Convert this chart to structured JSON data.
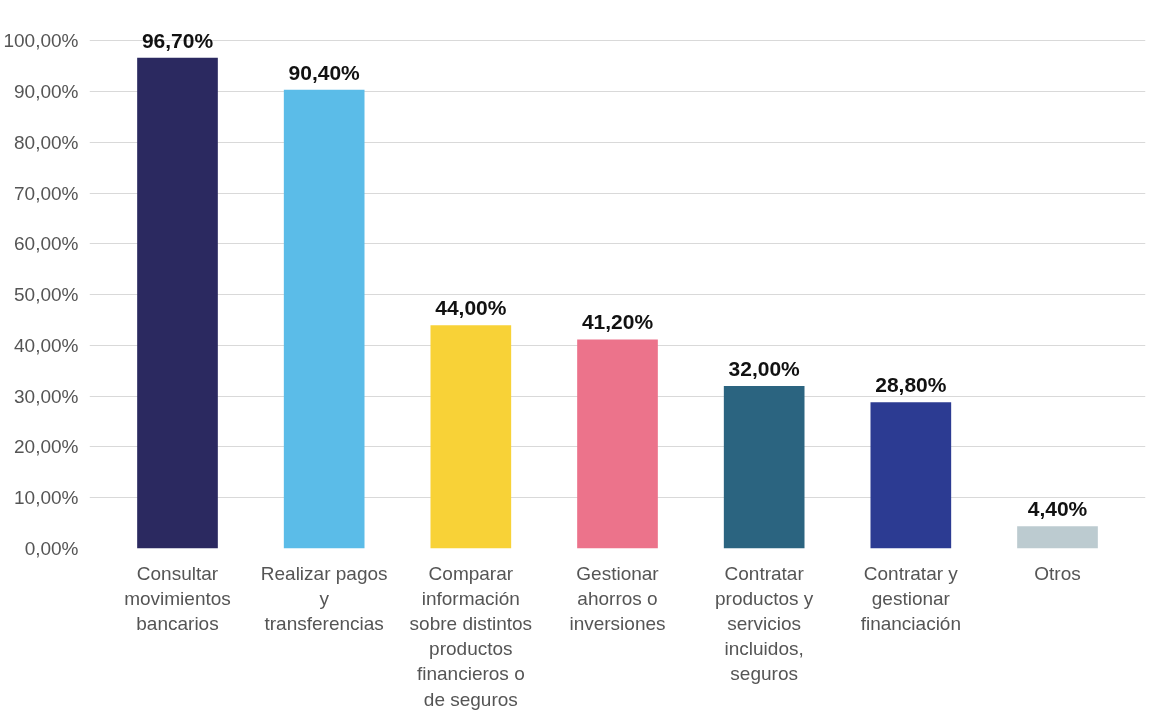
{
  "chart_data": {
    "type": "bar",
    "categories": [
      "Consultar movimientos bancarios",
      "Realizar pagos y transferencias",
      "Comparar información sobre distintos productos financieros o de seguros",
      "Gestionar ahorros o inversiones",
      "Contratar productos y servicios incluidos, seguros",
      "Contratar y gestionar financiación",
      "Otros"
    ],
    "values": [
      96.7,
      90.4,
      44.0,
      41.2,
      32.0,
      28.8,
      4.4
    ],
    "colors": [
      "#2b2960",
      "#5bbce8",
      "#f8d237",
      "#ec738b",
      "#2b6480",
      "#2c3b92",
      "#bccbd0"
    ],
    "value_labels": [
      "96,70%",
      "90,40%",
      "44,00%",
      "41,20%",
      "32,00%",
      "28,80%",
      "4,40%"
    ],
    "ylim": [
      0,
      100
    ],
    "yticks": [
      {
        "value": 0,
        "label": "0,00%"
      },
      {
        "value": 10,
        "label": "10,00%"
      },
      {
        "value": 20,
        "label": "20,00%"
      },
      {
        "value": 30,
        "label": "30,00%"
      },
      {
        "value": 40,
        "label": "40,00%"
      },
      {
        "value": 50,
        "label": "50,00%"
      },
      {
        "value": 60,
        "label": "60,00%"
      },
      {
        "value": 70,
        "label": "70,00%"
      },
      {
        "value": 80,
        "label": "80,00%"
      },
      {
        "value": 90,
        "label": "90,00%"
      },
      {
        "value": 100,
        "label": "100,00%"
      }
    ],
    "grid": "y",
    "legend": false
  }
}
